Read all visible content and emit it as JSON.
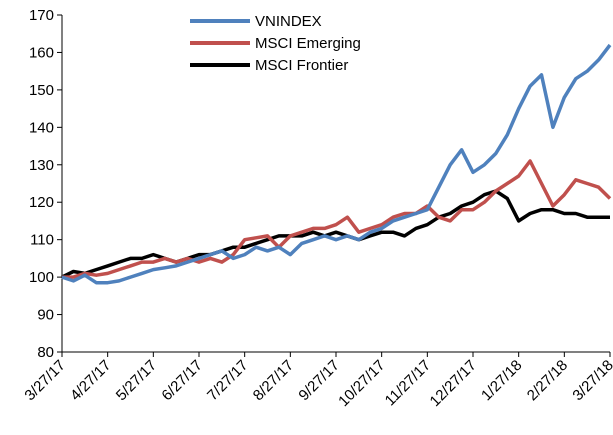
{
  "chart_data": {
    "type": "line",
    "categories": [
      "3/27/17",
      null,
      null,
      null,
      "4/27/17",
      null,
      null,
      null,
      "5/27/17",
      null,
      null,
      null,
      "6/27/17",
      null,
      null,
      null,
      "7/27/17",
      null,
      null,
      null,
      "8/27/17",
      null,
      null,
      null,
      "9/27/17",
      null,
      null,
      null,
      "10/27/17",
      null,
      null,
      null,
      "11/27/17",
      null,
      null,
      null,
      "12/27/17",
      null,
      null,
      null,
      "1/27/18",
      null,
      null,
      null,
      "2/27/18",
      null,
      null,
      null,
      "3/27/18"
    ],
    "series": [
      {
        "name": "VNINDEX",
        "color": "#4f81bd",
        "values": [
          100,
          99,
          100.5,
          98.5,
          98.5,
          99,
          100,
          101,
          102,
          102.5,
          103,
          104,
          105,
          106,
          107,
          105,
          106,
          108,
          107,
          108,
          106,
          109,
          110,
          111,
          110,
          111,
          110,
          112,
          113,
          115,
          116,
          117,
          118,
          124,
          130,
          134,
          128,
          130,
          133,
          138,
          145,
          151,
          154,
          140,
          148,
          153,
          155,
          158,
          162
        ]
      },
      {
        "name": "MSCI Emerging",
        "color": "#c0504d",
        "values": [
          100,
          100,
          101,
          100.5,
          101,
          102,
          103,
          104,
          104,
          105,
          104,
          105,
          104,
          105,
          104,
          106,
          110,
          110.5,
          111,
          108,
          111,
          112,
          113,
          113,
          114,
          116,
          112,
          113,
          114,
          116,
          117,
          117,
          119,
          116,
          115,
          118,
          118,
          120,
          123,
          125,
          127,
          131,
          125,
          119,
          122,
          126,
          125,
          124,
          121
        ]
      },
      {
        "name": "MSCI Frontier",
        "color": "#000000",
        "values": [
          100,
          101.5,
          101,
          102,
          103,
          104,
          105,
          105,
          106,
          105,
          104,
          105,
          106,
          106,
          107,
          108,
          108,
          109,
          110,
          111,
          111,
          111,
          112,
          111,
          112,
          111,
          110,
          111,
          112,
          112,
          111,
          113,
          114,
          116,
          117,
          119,
          120,
          122,
          123,
          121,
          115,
          117,
          118,
          118,
          117,
          117,
          116,
          116,
          116
        ]
      }
    ],
    "ylim": [
      80,
      170
    ],
    "yticks": [
      80,
      90,
      100,
      110,
      120,
      130,
      140,
      150,
      160,
      170
    ]
  }
}
